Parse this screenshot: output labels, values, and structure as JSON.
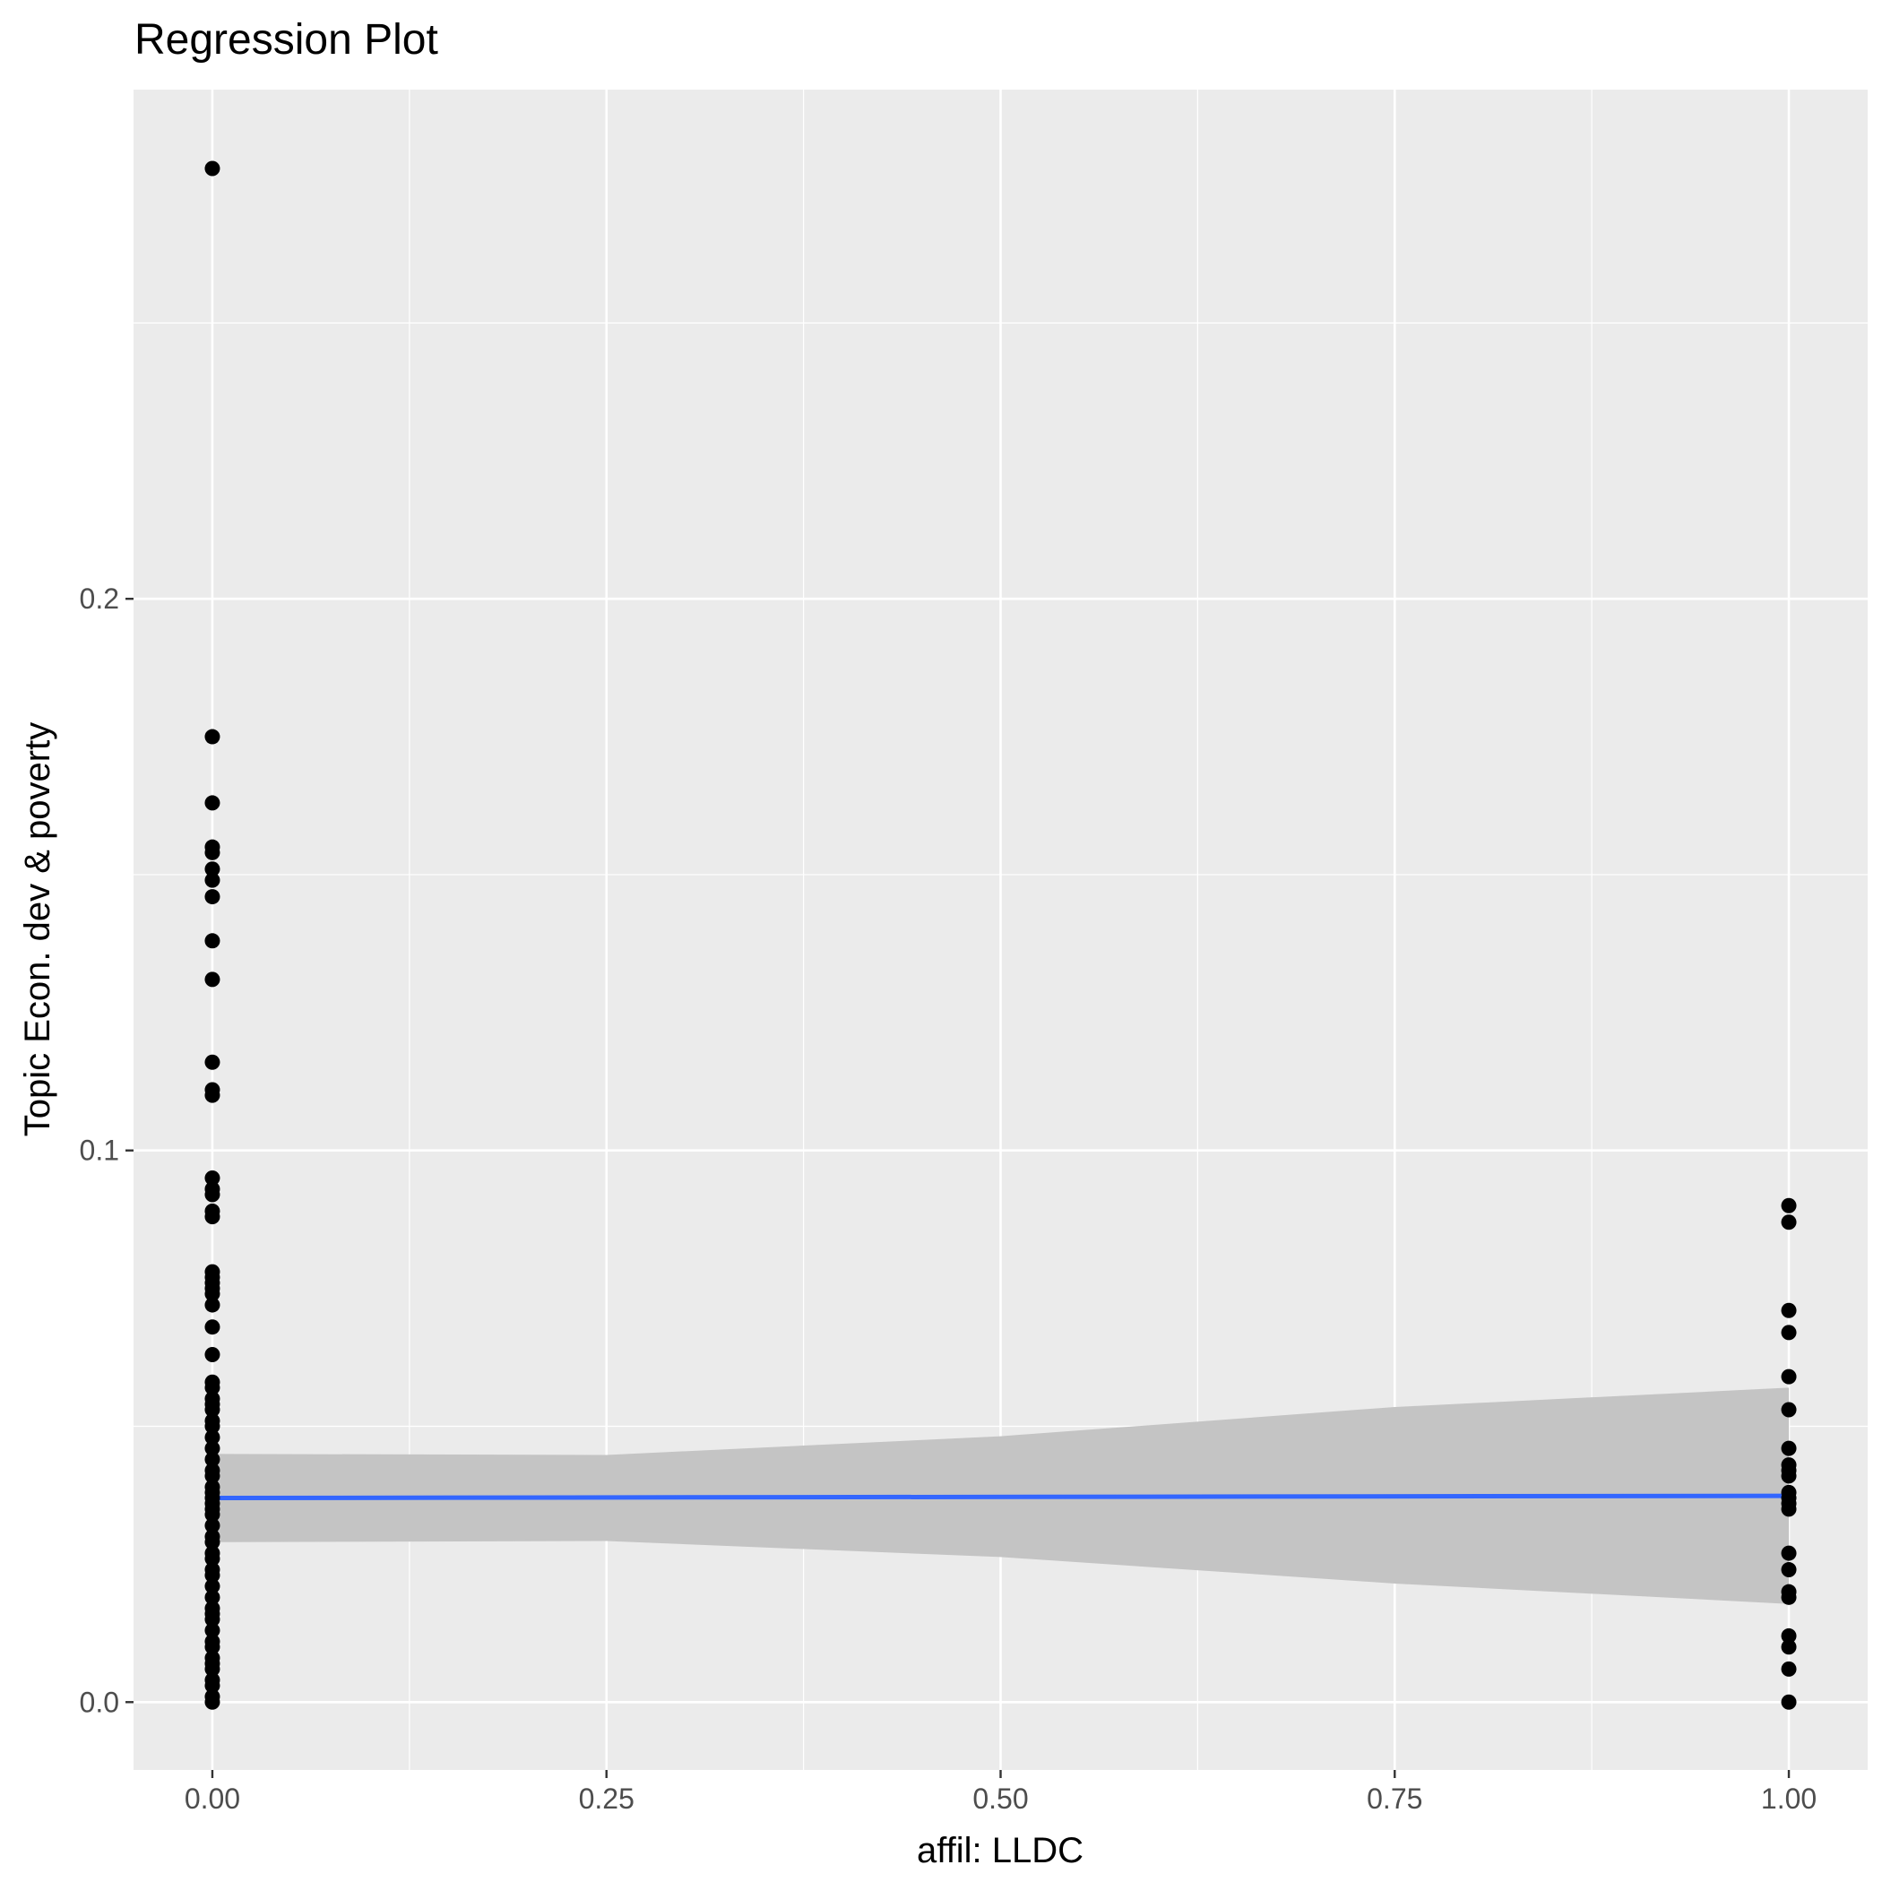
{
  "chart_data": {
    "type": "scatter",
    "title": "Regression Plot",
    "xlabel": "affil: LLDC",
    "ylabel": "Topic Econ. dev & poverty",
    "xlim": [
      -0.05,
      1.05
    ],
    "ylim": [
      -0.0123,
      0.2923
    ],
    "x_ticks": [
      0.0,
      0.25,
      0.5,
      0.75,
      1.0
    ],
    "x_tick_labels": [
      "0.00",
      "0.25",
      "0.50",
      "0.75",
      "1.00"
    ],
    "y_ticks": [
      0.0,
      0.1,
      0.2
    ],
    "y_tick_labels": [
      "0.0",
      "0.1",
      "0.2"
    ],
    "grid": true,
    "series": [
      {
        "x": 0.0,
        "y": [
          0.278,
          0.175,
          0.163,
          0.155,
          0.154,
          0.151,
          0.149,
          0.146,
          0.138,
          0.131,
          0.116,
          0.111,
          0.11,
          0.095,
          0.093,
          0.092,
          0.089,
          0.088,
          0.078,
          0.077,
          0.076,
          0.075,
          0.074,
          0.072,
          0.068,
          0.063,
          0.058,
          0.057,
          0.055,
          0.054,
          0.053,
          0.051,
          0.05,
          0.048,
          0.046,
          0.044,
          0.042,
          0.041,
          0.039,
          0.038,
          0.037,
          0.036,
          0.035,
          0.034,
          0.032,
          0.03,
          0.029,
          0.027,
          0.026,
          0.024,
          0.023,
          0.021,
          0.019,
          0.017,
          0.016,
          0.015,
          0.013,
          0.011,
          0.01,
          0.008,
          0.007,
          0.006,
          0.004,
          0.003,
          0.001,
          0.0
        ]
      },
      {
        "x": 1.0,
        "y": [
          0.09,
          0.087,
          0.071,
          0.067,
          0.059,
          0.053,
          0.046,
          0.043,
          0.042,
          0.041,
          0.038,
          0.037,
          0.036,
          0.035,
          0.027,
          0.024,
          0.02,
          0.019,
          0.012,
          0.01,
          0.006,
          0.0
        ]
      }
    ],
    "regression_line": {
      "x": [
        0.0,
        1.0
      ],
      "y": [
        0.037,
        0.0374
      ]
    },
    "confidence_band": {
      "x": [
        0.0,
        0.25,
        0.5,
        0.75,
        1.0
      ],
      "lower": [
        0.029,
        0.0292,
        0.0263,
        0.0215,
        0.0178
      ],
      "upper": [
        0.045,
        0.0448,
        0.0482,
        0.0535,
        0.057
      ]
    },
    "colors": {
      "panel": "#ebebeb",
      "grid": "#ffffff",
      "points": "#000000",
      "regression_line": "#3366ff",
      "confidence_band": "#c4c4c4"
    }
  }
}
